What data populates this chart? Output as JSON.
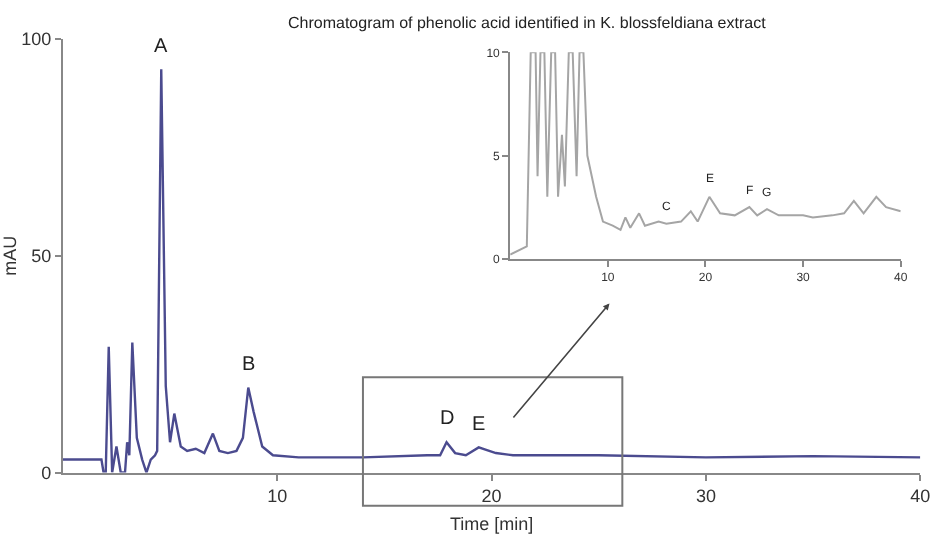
{
  "chart_data": [
    {
      "type": "line",
      "title": "Chromatogram of phenolic acid identified in K. blossfeldiana extract",
      "xlabel": "Time [min]",
      "ylabel": "mAU",
      "x": [
        0,
        1.8,
        1.9,
        2.0,
        2.14,
        2.3,
        2.5,
        2.7,
        2.9,
        3.0,
        3.1,
        3.24,
        3.45,
        3.7,
        3.9,
        4.1,
        4.3,
        4.4,
        4.59,
        4.8,
        5.0,
        5.2,
        5.5,
        5.8,
        6.2,
        6.6,
        7.0,
        7.3,
        7.7,
        8.1,
        8.4,
        8.65,
        8.9,
        9.3,
        9.8,
        11,
        14,
        17,
        17.6,
        17.9,
        18.3,
        18.8,
        19.4,
        20.2,
        21,
        25,
        30,
        35,
        40
      ],
      "series": [
        {
          "color": "#4b4b8f",
          "values": [
            3,
            3,
            0,
            0,
            29,
            0,
            6,
            0,
            0,
            7,
            4,
            30,
            8,
            3,
            0,
            3,
            4,
            5,
            93,
            20,
            7,
            13.6,
            6,
            5,
            5.5,
            4.5,
            9,
            5,
            4.5,
            5,
            8,
            19.6,
            14,
            6,
            4,
            3.5,
            3.5,
            4,
            4,
            7,
            4.5,
            4,
            5.8,
            4.5,
            4,
            4,
            3.5,
            3.8,
            3.5
          ]
        }
      ],
      "xlim": [
        0,
        40
      ],
      "ylim": [
        0,
        100
      ],
      "xticks": [
        10,
        20,
        30,
        40
      ],
      "yticks": [
        0,
        50,
        100
      ],
      "marker": "none",
      "line_style": "solid",
      "annotations": [
        {
          "text": "A",
          "x": 4.59,
          "y": 93
        },
        {
          "text": "B",
          "x": 8.65,
          "y": 19.6
        },
        {
          "text": "D",
          "x": 17.9,
          "y": 7
        },
        {
          "text": "E",
          "x": 19.4,
          "y": 5.8
        }
      ]
    },
    {
      "type": "line",
      "x": [
        0,
        1.7,
        2.1,
        2.6,
        2.8,
        3.1,
        3.5,
        3.8,
        4.2,
        4.6,
        4.9,
        5.3,
        5.6,
        6.0,
        6.4,
        6.8,
        7.1,
        7.5,
        7.9,
        8.8,
        9.5,
        10.5,
        11.3,
        11.8,
        12.3,
        13.2,
        13.8,
        15.2,
        16,
        17.5,
        18.5,
        19.2,
        20.4,
        21.5,
        23,
        24.5,
        25.3,
        26.3,
        27.5,
        30,
        31,
        33,
        34.2,
        35.2,
        36.2,
        37.5,
        38.5,
        40
      ],
      "series": [
        {
          "color": "#a5a5a5",
          "values": [
            0.2,
            0.6,
            10,
            10,
            4,
            10,
            10,
            3,
            10,
            10,
            3,
            6,
            3.5,
            10,
            10,
            4,
            10,
            10,
            5,
            3,
            1.8,
            1.6,
            1.4,
            2.0,
            1.5,
            2.2,
            1.6,
            1.8,
            1.7,
            1.8,
            2.3,
            1.8,
            3.0,
            2.2,
            2.1,
            2.5,
            2.1,
            2.4,
            2.1,
            2.1,
            2.0,
            2.1,
            2.2,
            2.8,
            2.2,
            3.0,
            2.5,
            2.3
          ]
        }
      ],
      "xlim": [
        0,
        40
      ],
      "ylim": [
        0,
        10
      ],
      "xticks": [
        10,
        20,
        30,
        40
      ],
      "yticks": [
        0,
        5,
        10
      ],
      "marker": "none",
      "line_style": "solid",
      "annotations": [
        {
          "text": "C",
          "x": 16,
          "y": 1.7
        },
        {
          "text": "E",
          "x": 20.4,
          "y": 3.0
        },
        {
          "text": "F",
          "x": 24.5,
          "y": 2.5
        },
        {
          "text": "G",
          "x": 26.3,
          "y": 2.4
        }
      ]
    }
  ]
}
